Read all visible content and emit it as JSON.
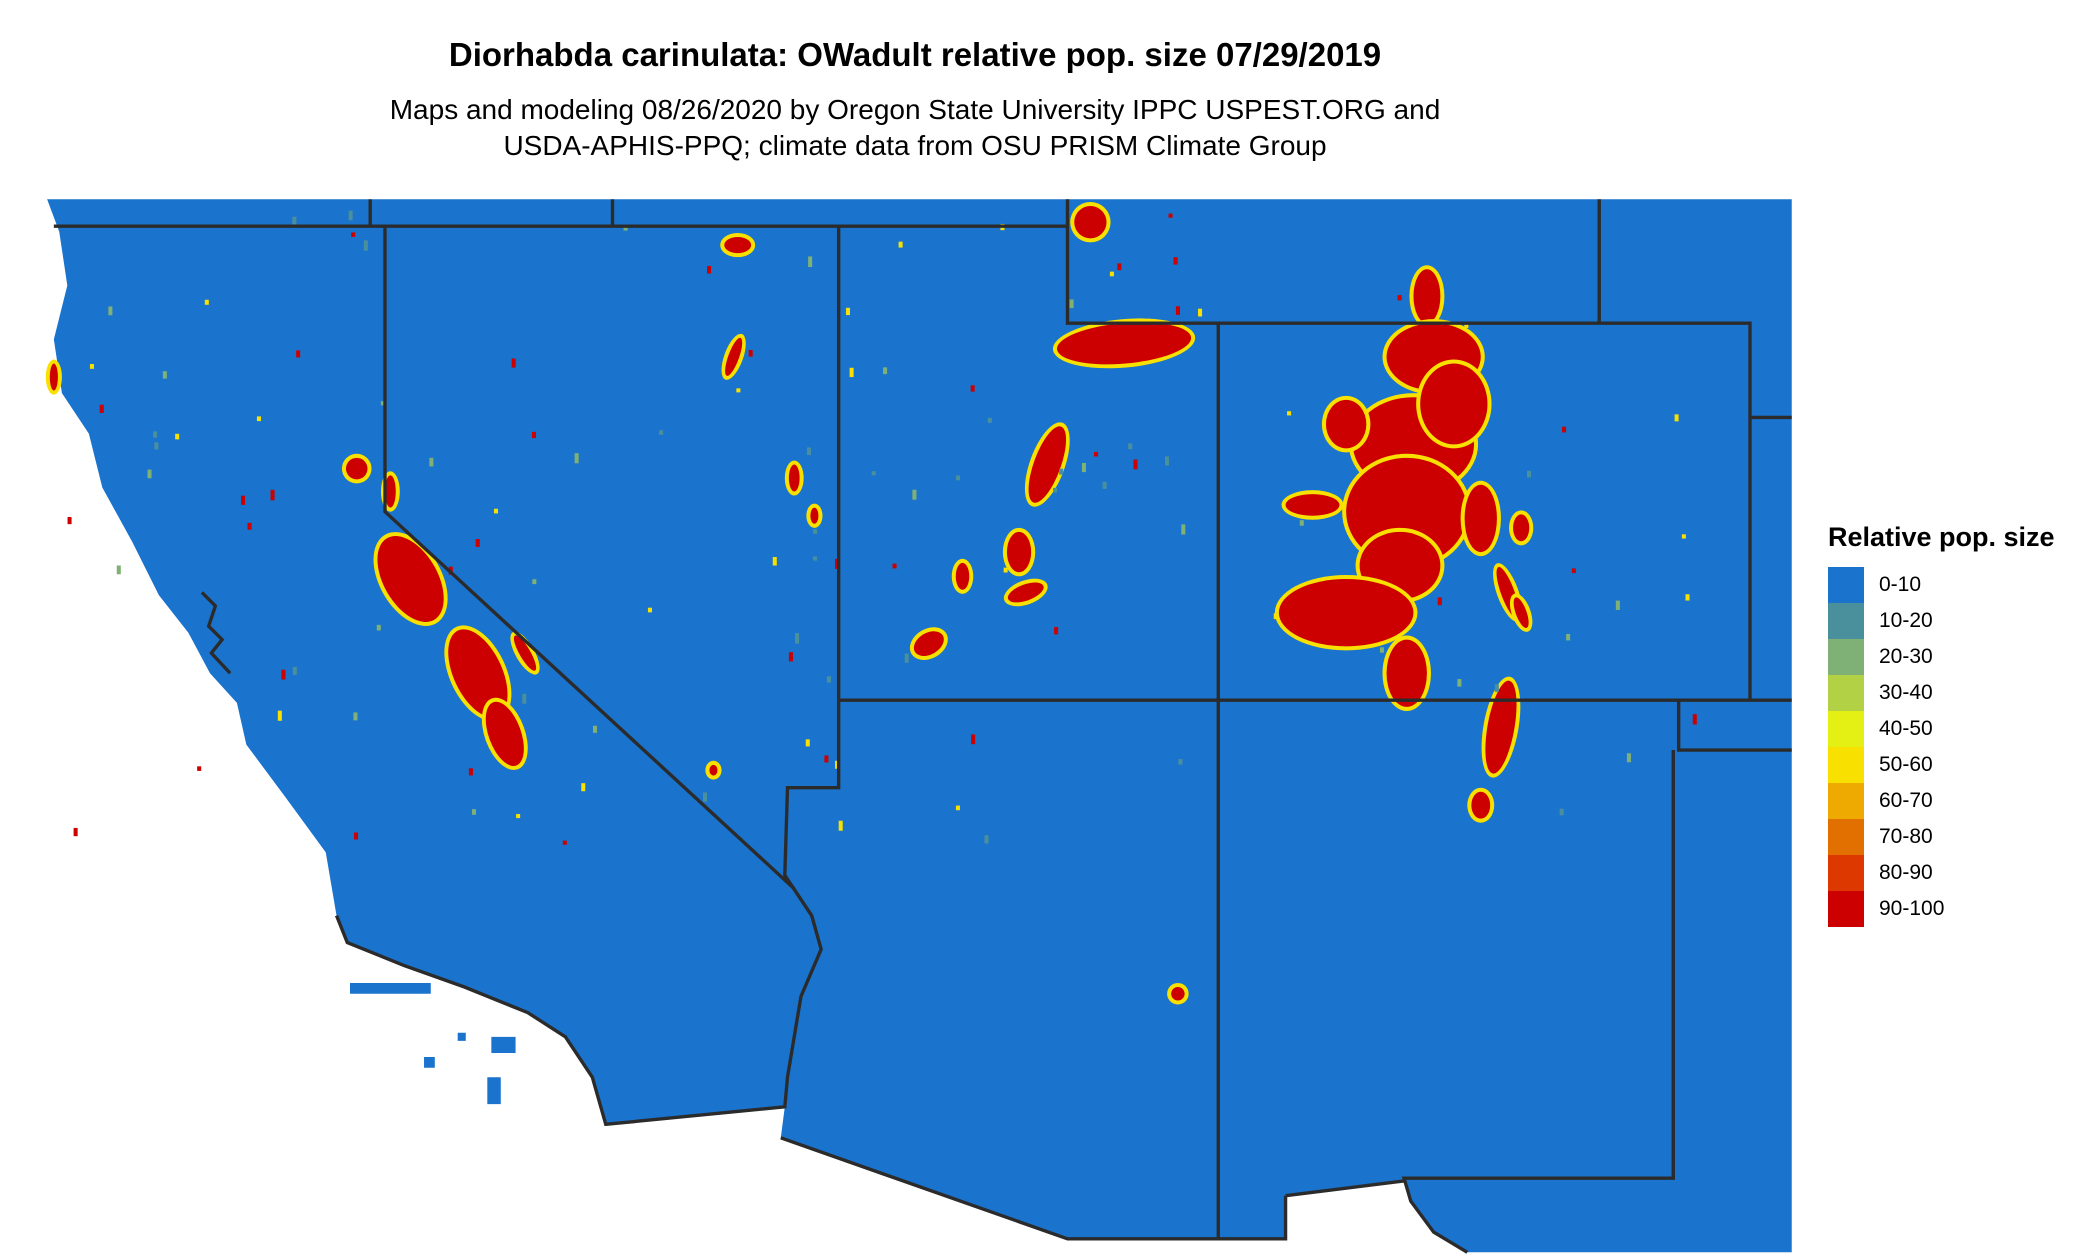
{
  "title": "Diorhabda carinulata: OWadult relative pop. size 07/29/2019",
  "subtitle_line1": "Maps and modeling 08/26/2020 by Oregon State University IPPC USPEST.ORG and",
  "subtitle_line2": "USDA-APHIS-PPQ; climate data from OSU PRISM Climate Group",
  "legend": {
    "title": "Relative pop. size",
    "items": [
      {
        "label": "0-10",
        "color": "#1a73cc"
      },
      {
        "label": "10-20",
        "color": "#4a8f9c"
      },
      {
        "label": "20-30",
        "color": "#7fb075"
      },
      {
        "label": "30-40",
        "color": "#b2d145"
      },
      {
        "label": "40-50",
        "color": "#e4f014"
      },
      {
        "label": "50-60",
        "color": "#f8e000"
      },
      {
        "label": "60-70",
        "color": "#eeaa00"
      },
      {
        "label": "70-80",
        "color": "#e27000"
      },
      {
        "label": "80-90",
        "color": "#dc3800"
      },
      {
        "label": "90-100",
        "color": "#cc0000"
      }
    ]
  },
  "colors": {
    "land": "#1a73cc",
    "border": "#2b2b2b",
    "hot": "#cc0000",
    "edge": "#f8e000"
  }
}
